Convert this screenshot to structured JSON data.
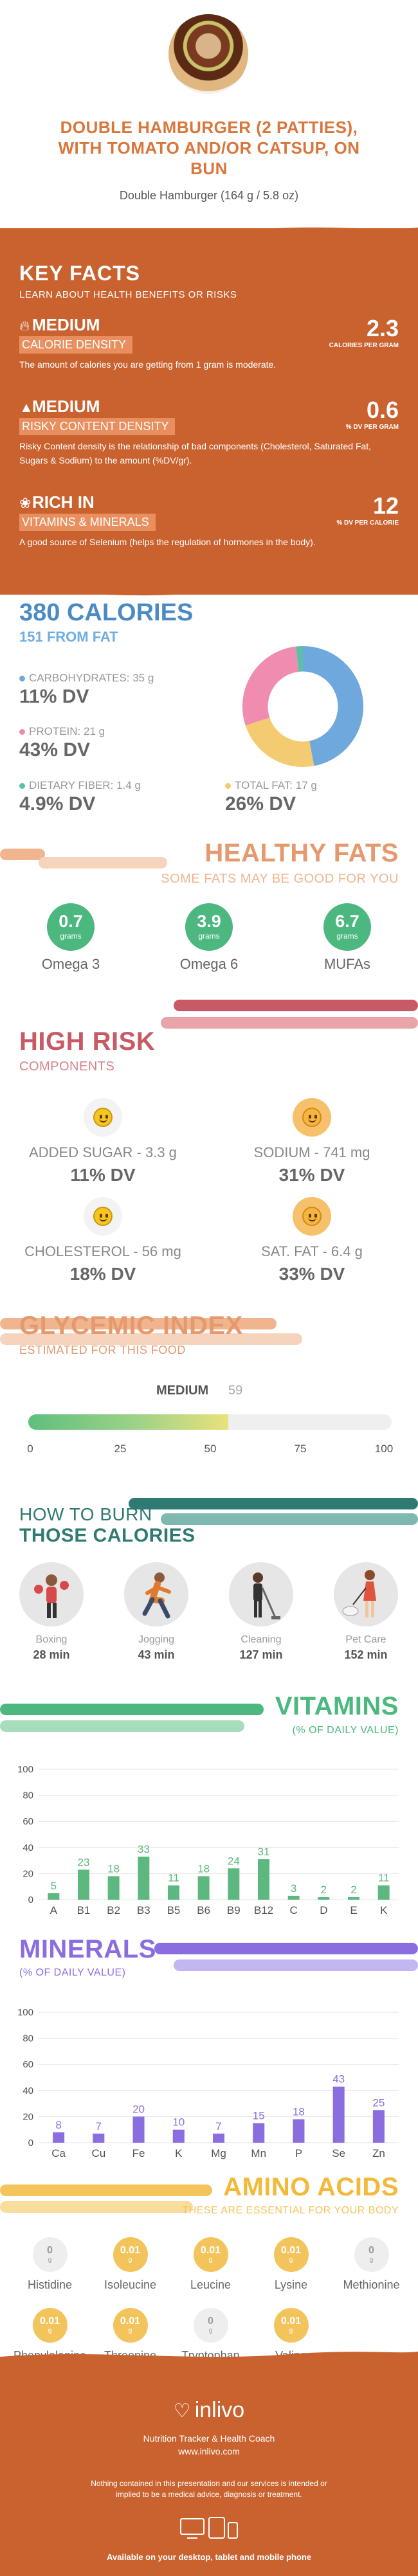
{
  "header": {
    "title_line1": "DOUBLE HAMBURGER (2 PATTIES),",
    "title_line2": "WITH TOMATO AND/OR CATSUP, ON",
    "title_line3": "BUN",
    "subtitle": "Double Hamburger (164 g / 5.8 oz)"
  },
  "key_facts": {
    "title": "KEY FACTS",
    "subtitle": "LEARN ABOUT HEALTH BENEFITS OR RISKS",
    "facts": [
      {
        "level": "MEDIUM",
        "tag": "CALORIE DENSITY",
        "value": "2.3",
        "unit": "CALORIES PER GRAM",
        "desc": "The amount of calories you are getting from 1 gram is moderate.",
        "icon": "flame-icon"
      },
      {
        "level": "MEDIUM",
        "tag": "RISKY CONTENT DENSITY",
        "value": "0.6",
        "unit": "% DV PER GRAM",
        "desc": "Risky Content density is the relationship of bad components (Cholesterol, Saturated Fat, Sugars & Sodium) to the amount (%DV/gr).",
        "icon": "warning-icon"
      },
      {
        "level": "RICH  IN",
        "tag": "VITAMINS & MINERALS",
        "value": "12",
        "unit": "% DV PER CALORIE",
        "desc": "A good source of Selenium (helps the regulation of hormones in the body).",
        "icon": "leaf-icon"
      }
    ]
  },
  "calories": {
    "title": "380 CALORIES",
    "from_fat": "151 FROM FAT",
    "macros": [
      {
        "label": "CARBOHYDRATES: 35 g",
        "dv": "11% DV",
        "color": "#6fa8dc",
        "grams": 35
      },
      {
        "label": "PROTEIN: 21 g",
        "dv": "43% DV",
        "color": "#f08cb0",
        "grams": 21
      },
      {
        "label": "DIETARY FIBER: 1.4 g",
        "dv": "4.9% DV",
        "color": "#5bc0a6",
        "grams": 1.4
      },
      {
        "label": "TOTAL FAT: 17 g",
        "dv": "26% DV",
        "color": "#f5cb72",
        "grams": 17
      }
    ]
  },
  "healthy_fats": {
    "title": "HEALTHY FATS",
    "subtitle": "SOME FATS MAY BE GOOD FOR YOU",
    "unit": "grams",
    "items": [
      {
        "value": "0.7",
        "name": "Omega 3"
      },
      {
        "value": "3.9",
        "name": "Omega 6"
      },
      {
        "value": "6.7",
        "name": "MUFAs"
      }
    ]
  },
  "high_risk": {
    "title": "HIGH RISK",
    "subtitle": "COMPONENTS",
    "items": [
      {
        "label": "ADDED SUGAR - 3.3 g",
        "dv": "11% DV",
        "icon": "smiley-icon"
      },
      {
        "label": "SODIUM - 741 mg",
        "dv": "31% DV",
        "icon": "smiley-icon"
      },
      {
        "label": "CHOLESTEROL - 56 mg",
        "dv": "18% DV",
        "icon": "smiley-icon"
      },
      {
        "label": "SAT. FAT - 6.4 g",
        "dv": "33% DV",
        "icon": "smiley-icon"
      }
    ]
  },
  "glycemic": {
    "title": "GLYCEMIC INDEX",
    "subtitle": "ESTIMATED FOR THIS FOOD",
    "level": "MEDIUM",
    "value": "59",
    "ticks": [
      "0",
      "25",
      "50",
      "75",
      "100"
    ]
  },
  "burn": {
    "title_line1": "HOW TO BURN",
    "title_line2": "THOSE CALORIES",
    "activities": [
      {
        "name": "Boxing",
        "minutes": "28 min",
        "icon": "boxing-icon"
      },
      {
        "name": "Jogging",
        "minutes": "43 min",
        "icon": "jogging-icon"
      },
      {
        "name": "Cleaning",
        "minutes": "127 min",
        "icon": "cleaning-icon"
      },
      {
        "name": "Pet Care",
        "minutes": "152 min",
        "icon": "pet-care-icon"
      }
    ]
  },
  "vitamins": {
    "title": "VITAMINS",
    "subtitle": "(% OF DAILY VALUE)"
  },
  "minerals": {
    "title": "MINERALS",
    "subtitle": "(% OF DAILY VALUE)"
  },
  "chart_data": [
    {
      "type": "bar",
      "title": "",
      "categories": [
        "A",
        "B1",
        "B2",
        "B3",
        "B5",
        "B6",
        "B9",
        "B12",
        "C",
        "D",
        "E",
        "K"
      ],
      "values": [
        5,
        23,
        18,
        33,
        11,
        18,
        24,
        31,
        3,
        2,
        2,
        11
      ],
      "ylim": [
        0,
        100
      ],
      "yticks": [
        "0",
        "20",
        "40",
        "60",
        "80",
        "100"
      ],
      "color": "#5cb87f",
      "grid": true
    },
    {
      "type": "bar",
      "title": "",
      "categories": [
        "Ca",
        "Cu",
        "Fe",
        "K",
        "Mg",
        "Mn",
        "P",
        "Se",
        "Zn"
      ],
      "values": [
        8,
        7,
        20,
        10,
        7,
        15,
        18,
        43,
        25
      ],
      "ylim": [
        0,
        100
      ],
      "yticks": [
        "0",
        "20",
        "40",
        "60",
        "80",
        "100"
      ],
      "color": "#8a6ee0",
      "grid": true
    }
  ],
  "amino": {
    "title": "AMINO ACIDS",
    "subtitle": "THESE ARE ESSENTIAL FOR YOUR BODY",
    "unit": "g",
    "items": [
      {
        "name": "Histidine",
        "value": "0"
      },
      {
        "name": "Isoleucine",
        "value": "0.01"
      },
      {
        "name": "Leucine",
        "value": "0.01"
      },
      {
        "name": "Lysine",
        "value": "0.01"
      },
      {
        "name": "Methionine",
        "value": "0"
      },
      {
        "name": "Phenylalanine",
        "value": "0.01"
      },
      {
        "name": "Threonine",
        "value": "0.01"
      },
      {
        "name": "Tryptophan",
        "value": "0"
      },
      {
        "name": "Valine",
        "value": "0.01"
      }
    ]
  },
  "footer": {
    "brand": "inlivo",
    "tagline": "Nutrition Tracker & Health Coach",
    "url": "www.inlivo.com",
    "disclaimer": "Nothing contained in this presentation and our services is intended or implied to be a medical advice, diagnosis or treatment.",
    "available": "Available on your desktop, tablet and mobile phone"
  },
  "colors": {
    "orange": "#c9622f",
    "blue": "#4a8bc4",
    "green": "#4cb87f",
    "purple": "#8a6ee0",
    "pink_red": "#c75a64",
    "yellow": "#f3c45c"
  }
}
